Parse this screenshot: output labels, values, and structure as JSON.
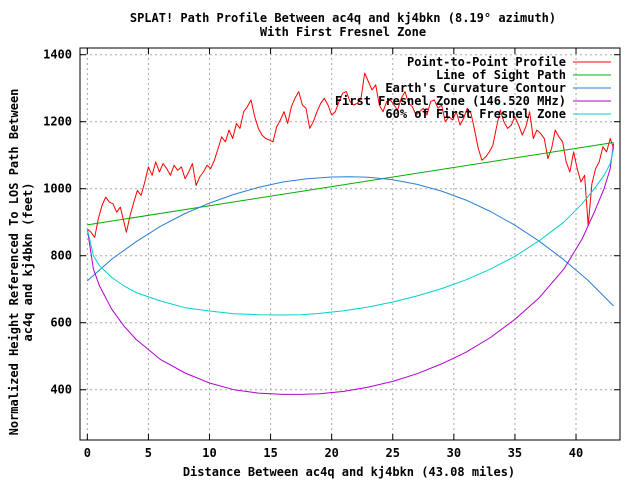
{
  "chart_data": {
    "type": "line",
    "title": "SPLAT! Path Profile Between ac4q and kj4bkn (8.19° azimuth)",
    "subtitle": "With First Fresnel Zone",
    "xlabel": "Distance Between ac4q and kj4bkn (43.08 miles)",
    "ylabel_line1": "Normalized Height Referenced To LOS Path Between",
    "ylabel_line2": "ac4q and kj4bkn (feet)",
    "xlim": [
      -0.6,
      43.6
    ],
    "ylim": [
      250,
      1420
    ],
    "x_ticks": [
      0,
      5,
      10,
      15,
      20,
      25,
      30,
      35,
      40
    ],
    "y_ticks": [
      400,
      600,
      800,
      1000,
      1200,
      1400
    ],
    "grid": true,
    "legend_position": "top-right",
    "distance_miles": 43.08,
    "series": [
      {
        "name": "Point-to-Point Profile",
        "color": "#ff0000",
        "x": [
          0,
          0.3,
          0.6,
          0.9,
          1.2,
          1.5,
          1.8,
          2.1,
          2.4,
          2.7,
          3.0,
          3.2,
          3.5,
          3.8,
          4.1,
          4.4,
          4.7,
          5.0,
          5.3,
          5.6,
          5.9,
          6.2,
          6.5,
          6.8,
          7.1,
          7.4,
          7.7,
          8.0,
          8.3,
          8.6,
          8.9,
          9.2,
          9.5,
          9.8,
          10.1,
          10.4,
          10.7,
          11.0,
          11.3,
          11.6,
          11.9,
          12.2,
          12.5,
          12.8,
          13.1,
          13.4,
          13.7,
          14.0,
          14.3,
          14.6,
          14.9,
          15.2,
          15.5,
          15.8,
          16.1,
          16.4,
          16.7,
          17.0,
          17.3,
          17.6,
          17.9,
          18.2,
          18.5,
          18.8,
          19.1,
          19.4,
          19.7,
          20.0,
          20.3,
          20.6,
          20.9,
          21.2,
          21.5,
          21.8,
          22.1,
          22.4,
          22.7,
          23.0,
          23.3,
          23.6,
          23.9,
          24.2,
          24.5,
          24.8,
          25.1,
          25.4,
          25.7,
          26.0,
          26.3,
          26.6,
          26.9,
          27.2,
          27.5,
          27.8,
          28.1,
          28.4,
          28.7,
          29.0,
          29.3,
          29.6,
          29.9,
          30.2,
          30.5,
          30.8,
          31.1,
          31.4,
          31.7,
          32.0,
          32.3,
          32.6,
          32.9,
          33.2,
          33.5,
          33.8,
          34.1,
          34.4,
          34.7,
          35.0,
          35.3,
          35.6,
          35.9,
          36.2,
          36.5,
          36.8,
          37.1,
          37.4,
          37.7,
          38.0,
          38.3,
          38.6,
          38.9,
          39.2,
          39.5,
          39.8,
          40.1,
          40.4,
          40.7,
          41.0,
          41.3,
          41.6,
          41.9,
          42.2,
          42.5,
          42.8,
          43.08
        ],
        "y": [
          880,
          870,
          855,
          910,
          950,
          975,
          960,
          955,
          930,
          945,
          900,
          870,
          920,
          960,
          995,
          980,
          1020,
          1065,
          1040,
          1080,
          1050,
          1075,
          1060,
          1040,
          1070,
          1055,
          1065,
          1030,
          1050,
          1075,
          1010,
          1035,
          1050,
          1070,
          1060,
          1085,
          1120,
          1155,
          1140,
          1175,
          1150,
          1195,
          1180,
          1230,
          1245,
          1265,
          1215,
          1180,
          1160,
          1150,
          1145,
          1140,
          1185,
          1205,
          1230,
          1195,
          1245,
          1270,
          1290,
          1250,
          1240,
          1180,
          1200,
          1230,
          1255,
          1270,
          1250,
          1220,
          1230,
          1260,
          1285,
          1290,
          1260,
          1250,
          1255,
          1270,
          1345,
          1320,
          1295,
          1310,
          1250,
          1230,
          1260,
          1265,
          1250,
          1235,
          1270,
          1290,
          1255,
          1245,
          1220,
          1230,
          1240,
          1220,
          1260,
          1265,
          1240,
          1250,
          1200,
          1215,
          1205,
          1230,
          1190,
          1210,
          1240,
          1225,
          1175,
          1120,
          1085,
          1095,
          1110,
          1130,
          1185,
          1235,
          1200,
          1180,
          1190,
          1215,
          1190,
          1160,
          1185,
          1230,
          1150,
          1175,
          1165,
          1150,
          1090,
          1120,
          1175,
          1155,
          1140,
          1080,
          1050,
          1110,
          1060,
          1020,
          1040,
          890,
          1015,
          1060,
          1080,
          1125,
          1110,
          1150,
          1120
        ]
      },
      {
        "name": "Line of Sight Path",
        "color": "#00b000",
        "x": [
          0,
          43.08
        ],
        "y": [
          892,
          1138
        ]
      },
      {
        "name": "Earth's Curvature Contour",
        "color": "#2a7fd4",
        "x": [
          0,
          2,
          4,
          6,
          8,
          10,
          12,
          14,
          16,
          18,
          20,
          21.5,
          23,
          25,
          27,
          29,
          31,
          33,
          35,
          37,
          39,
          41,
          43.08
        ],
        "y": [
          725,
          790,
          842,
          888,
          926,
          957,
          983,
          1004,
          1020,
          1030,
          1035,
          1036,
          1034,
          1027,
          1013,
          993,
          966,
          932,
          891,
          843,
          788,
          726,
          650
        ]
      },
      {
        "name": "First Fresnel Zone (146.520 MHz)",
        "color": "#b000d0",
        "x": [
          0,
          0.5,
          1,
          2,
          3,
          4,
          6,
          8,
          10,
          12,
          14,
          16,
          17.5,
          19,
          21,
          23,
          25,
          27,
          29,
          31,
          33,
          35,
          37,
          39,
          40.5,
          41.5,
          42.3,
          42.8,
          43.08
        ],
        "y": [
          880,
          760,
          710,
          640,
          590,
          550,
          490,
          450,
          420,
          400,
          390,
          386,
          386,
          388,
          395,
          408,
          425,
          448,
          477,
          512,
          556,
          610,
          675,
          760,
          850,
          930,
          1000,
          1060,
          1135
        ]
      },
      {
        "name": "60% of First Fresnel Zone",
        "color": "#00d0d0",
        "x": [
          0,
          0.5,
          1,
          2,
          3,
          4,
          6,
          8,
          10,
          12,
          14,
          16,
          17.5,
          19,
          21,
          23,
          25,
          27,
          29,
          31,
          33,
          35,
          37,
          39,
          40.5,
          41.5,
          42.3,
          42.8,
          43.08
        ],
        "y": [
          880,
          800,
          770,
          735,
          710,
          690,
          665,
          645,
          635,
          627,
          624,
          623,
          624,
          628,
          636,
          647,
          662,
          680,
          702,
          728,
          760,
          798,
          845,
          900,
          955,
          1000,
          1040,
          1075,
          1120
        ]
      }
    ]
  }
}
